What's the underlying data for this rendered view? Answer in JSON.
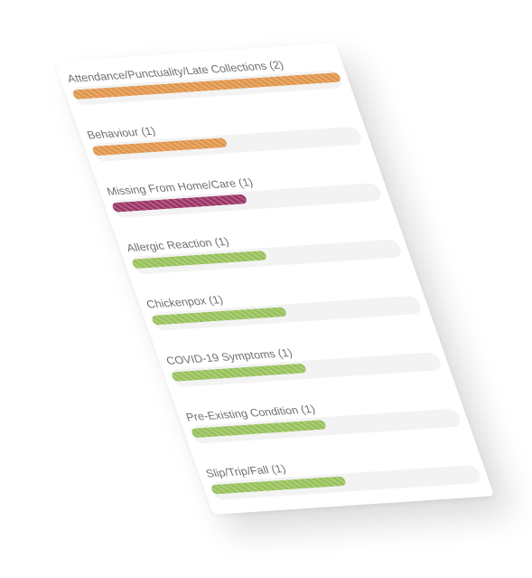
{
  "incident_breakdown": {
    "items": [
      {
        "label": "Attendance/Punctuality/Late Collections (2)",
        "fraction": 1.0,
        "color": "#e0954a"
      },
      {
        "label": "Behaviour (1)",
        "fraction": 0.5,
        "color": "#e0954a"
      },
      {
        "label": "Missing From Home/Care (1)",
        "fraction": 0.5,
        "color": "#9b3566"
      },
      {
        "label": "Allergic Reaction (1)",
        "fraction": 0.5,
        "color": "#97c15a"
      },
      {
        "label": "Chickenpox (1)",
        "fraction": 0.5,
        "color": "#97c15a"
      },
      {
        "label": "COVID-19 Symptoms (1)",
        "fraction": 0.5,
        "color": "#97c15a"
      },
      {
        "label": "Pre-Existing Condition (1)",
        "fraction": 0.5,
        "color": "#97c15a"
      },
      {
        "label": "Slip/Trip/Fall (1)",
        "fraction": 0.5,
        "color": "#97c15a"
      }
    ]
  }
}
